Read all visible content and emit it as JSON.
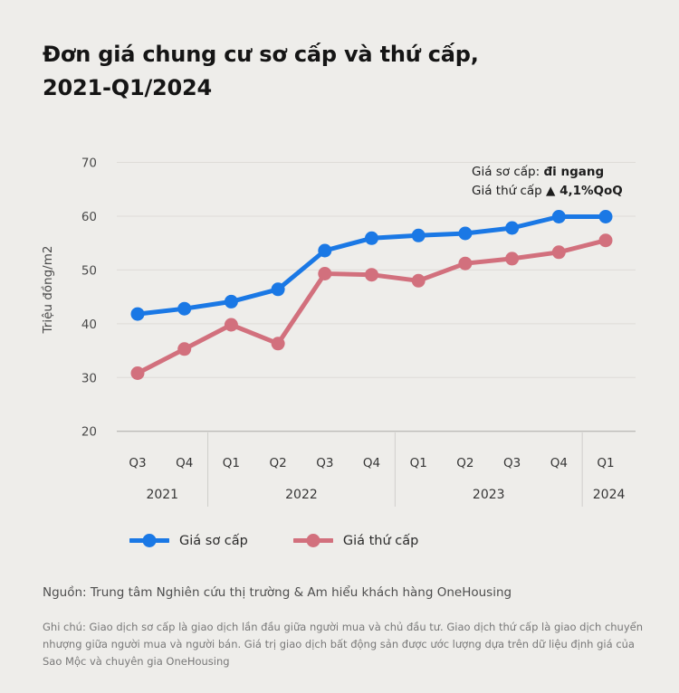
{
  "title": {
    "line1": "Đơn giá chung cư sơ cấp và thứ cấp,",
    "line2": "2021-Q1/2024"
  },
  "annotation": {
    "line1_label": "Giá sơ cấp: ",
    "line1_value": "đi ngang",
    "line2_label": "Giá thứ cấp ",
    "line2_value": "▲ 4,1%QoQ"
  },
  "chart_data": {
    "type": "line",
    "title": "Đơn giá chung cư sơ cấp và thứ cấp, 2021-Q1/2024",
    "xlabel": "",
    "ylabel": "Triệu đồng/m2",
    "ylim": [
      20,
      70
    ],
    "yticks": [
      70,
      60,
      50,
      40,
      30,
      20
    ],
    "grid": true,
    "legend_position": "bottom",
    "categories": [
      "Q3",
      "Q4",
      "Q1",
      "Q2",
      "Q3",
      "Q4",
      "Q1",
      "Q2",
      "Q3",
      "Q4",
      "Q1"
    ],
    "year_groups": [
      {
        "label": "2021",
        "span": 2
      },
      {
        "label": "2022",
        "span": 4
      },
      {
        "label": "2023",
        "span": 4
      },
      {
        "label": "2024",
        "span": 1
      }
    ],
    "series": [
      {
        "name": "Giá sơ cấp",
        "color": "#1a78e5",
        "values": [
          41.8,
          42.8,
          44.1,
          46.4,
          53.6,
          55.9,
          56.4,
          56.8,
          57.8,
          59.9,
          59.9
        ]
      },
      {
        "name": "Giá thứ cấp",
        "color": "#d2707d",
        "values": [
          30.8,
          35.3,
          39.8,
          36.3,
          49.3,
          49.1,
          48.0,
          51.2,
          52.1,
          53.3,
          55.5
        ]
      }
    ]
  },
  "legend": {
    "items": [
      {
        "label": "Giá sơ cấp",
        "color": "#1a78e5"
      },
      {
        "label": "Giá thứ cấp",
        "color": "#d2707d"
      }
    ]
  },
  "source": "Nguồn: Trung tâm Nghiên cứu thị trường & Am hiểu khách hàng OneHousing",
  "note": "Ghi chú: Giao dịch sơ cấp là giao dịch lần đầu giữa người mua và chủ đầu tư. Giao dịch thứ cấp là giao dịch chuyển nhượng giữa người mua và người bán. Giá trị giao dịch bất động sản được ước lượng dựa trên dữ liệu định giá của Sao Mộc và chuyên gia OneHousing",
  "colors": {
    "background": "#eeedea",
    "primary": "#1a78e5",
    "secondary": "#d2707d",
    "gridline": "#dedcd8",
    "axisline": "#aaa9a6",
    "separator": "#cfcecb",
    "tick_text": "#4a4a4a",
    "xlabel_text": "#363636"
  }
}
